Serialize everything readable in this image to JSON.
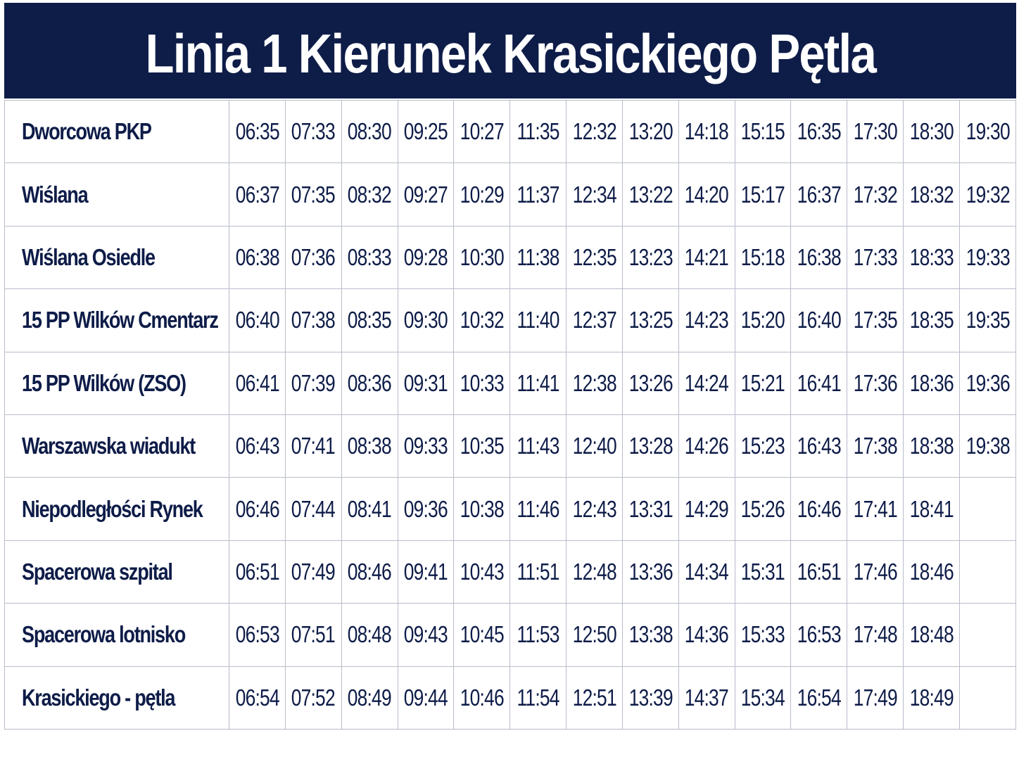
{
  "title": "Linia 1 Kierunek Krasickiego Pętla",
  "rows": [
    {
      "stop": "Dworcowa PKP",
      "times": [
        "06:35",
        "07:33",
        "08:30",
        "09:25",
        "10:27",
        "11:35",
        "12:32",
        "13:20",
        "14:18",
        "15:15",
        "16:35",
        "17:30",
        "18:30",
        "19:30"
      ]
    },
    {
      "stop": "Wiślana",
      "times": [
        "06:37",
        "07:35",
        "08:32",
        "09:27",
        "10:29",
        "11:37",
        "12:34",
        "13:22",
        "14:20",
        "15:17",
        "16:37",
        "17:32",
        "18:32",
        "19:32"
      ]
    },
    {
      "stop": "Wiślana Osiedle",
      "times": [
        "06:38",
        "07:36",
        "08:33",
        "09:28",
        "10:30",
        "11:38",
        "12:35",
        "13:23",
        "14:21",
        "15:18",
        "16:38",
        "17:33",
        "18:33",
        "19:33"
      ]
    },
    {
      "stop": "15 PP Wilków Cmentarz",
      "times": [
        "06:40",
        "07:38",
        "08:35",
        "09:30",
        "10:32",
        "11:40",
        "12:37",
        "13:25",
        "14:23",
        "15:20",
        "16:40",
        "17:35",
        "18:35",
        "19:35"
      ]
    },
    {
      "stop": "15 PP Wilków (ZSO)",
      "times": [
        "06:41",
        "07:39",
        "08:36",
        "09:31",
        "10:33",
        "11:41",
        "12:38",
        "13:26",
        "14:24",
        "15:21",
        "16:41",
        "17:36",
        "18:36",
        "19:36"
      ]
    },
    {
      "stop": "Warszawska wiadukt",
      "times": [
        "06:43",
        "07:41",
        "08:38",
        "09:33",
        "10:35",
        "11:43",
        "12:40",
        "13:28",
        "14:26",
        "15:23",
        "16:43",
        "17:38",
        "18:38",
        "19:38"
      ]
    },
    {
      "stop": "Niepodległości Rynek",
      "times": [
        "06:46",
        "07:44",
        "08:41",
        "09:36",
        "10:38",
        "11:46",
        "12:43",
        "13:31",
        "14:29",
        "15:26",
        "16:46",
        "17:41",
        "18:41",
        ""
      ]
    },
    {
      "stop": "Spacerowa szpital",
      "times": [
        "06:51",
        "07:49",
        "08:46",
        "09:41",
        "10:43",
        "11:51",
        "12:48",
        "13:36",
        "14:34",
        "15:31",
        "16:51",
        "17:46",
        "18:46",
        ""
      ]
    },
    {
      "stop": "Spacerowa lotnisko",
      "times": [
        "06:53",
        "07:51",
        "08:48",
        "09:43",
        "10:45",
        "11:53",
        "12:50",
        "13:38",
        "14:36",
        "15:33",
        "16:53",
        "17:48",
        "18:48",
        ""
      ]
    },
    {
      "stop": "Krasickiego - pętla",
      "times": [
        "06:54",
        "07:52",
        "08:49",
        "09:44",
        "10:46",
        "11:54",
        "12:51",
        "13:39",
        "14:37",
        "15:34",
        "16:54",
        "17:49",
        "18:49",
        ""
      ]
    }
  ]
}
